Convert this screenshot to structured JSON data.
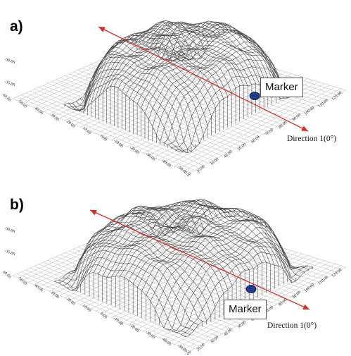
{
  "panels": [
    {
      "label": "a)",
      "marker_label": "Marker",
      "direction_label": "Direction 1(0°)",
      "z_ticks": [
        "-30.00",
        "-35.00"
      ],
      "y_ticks": [
        "60.00",
        "50.00",
        "40.00",
        "30.00",
        "20.00",
        "10.00",
        "0.00",
        "-10.00",
        "-20.00",
        "-30.00",
        "-40.00",
        "-50.00"
      ],
      "x_ticks": [
        "10.00",
        "20.00",
        "30.00",
        "40.00",
        "50.00",
        "60.00",
        "70.00",
        "80.00",
        "90.00",
        "100.00",
        "110.00",
        "120.00"
      ],
      "x_tick_extra": "1.00",
      "colors": {
        "arrow": "#d0312d",
        "marker": "#1f3b8a",
        "mesh": "#444444"
      }
    },
    {
      "label": "b)",
      "marker_label": "Marker",
      "direction_label": "Direction 1(0°)",
      "z_ticks": [
        "-30.00",
        "-35.00"
      ],
      "y_ticks": [
        "60.00",
        "50.00",
        "40.00",
        "30.00",
        "20.00",
        "10.00",
        "0.00",
        "-10.00",
        "-20.00",
        "-30.00",
        "-40.00",
        "-50.00"
      ],
      "x_ticks": [
        "10.00",
        "20.00",
        "30.00",
        "40.00",
        "50.00",
        "60.00",
        "70.00",
        "80.00",
        "90.00",
        "100.00",
        "110.00",
        "120.00"
      ],
      "x_tick_extra": "1.00",
      "colors": {
        "arrow": "#d0312d",
        "marker": "#1f3b8a",
        "mesh": "#444444"
      }
    }
  ]
}
